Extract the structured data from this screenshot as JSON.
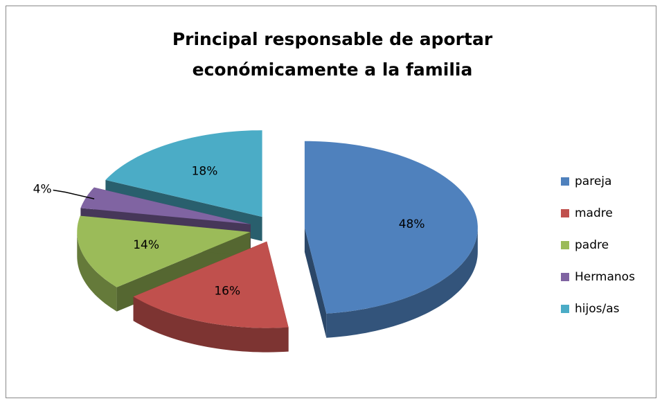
{
  "chart_data": {
    "type": "pie",
    "title": [
      "Principal responsable de aportar",
      "económicamente a la familia"
    ],
    "categories": [
      "pareja",
      "madre",
      "padre",
      "Hermanos",
      "hijos/as"
    ],
    "values": [
      48,
      16,
      14,
      4,
      18
    ],
    "value_labels": [
      "48%",
      "16%",
      "14%",
      "4%",
      "18%"
    ],
    "colors": [
      "#4f81bd",
      "#c0504d",
      "#9bbb59",
      "#8064a2",
      "#4bacc6"
    ],
    "legend": "right"
  }
}
